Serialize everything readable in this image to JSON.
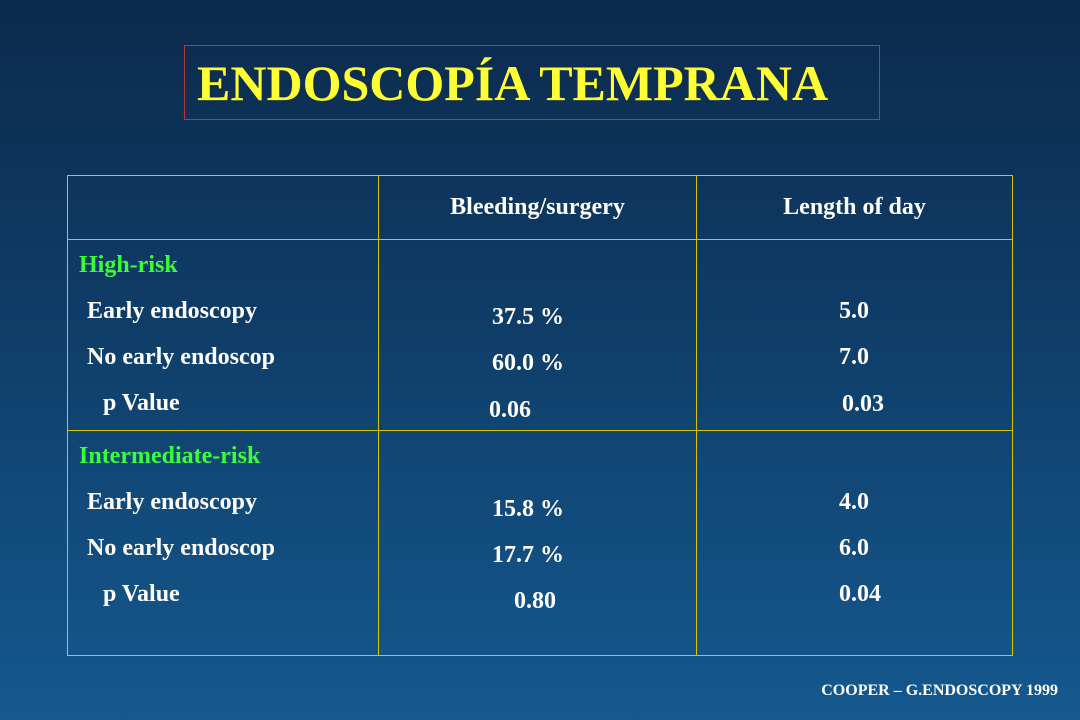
{
  "slide": {
    "title": "ENDOSCOPÍA TEMPRANA",
    "footer": "COOPER – G.ENDOSCOPY  1999"
  },
  "table": {
    "headers": [
      "",
      "Bleeding/surgery",
      "Length of day"
    ],
    "groups": [
      {
        "label": "High-risk",
        "rows": [
          "Early endoscopy",
          "No early endoscop",
          "p  Value"
        ],
        "bleeding": [
          "37.5 %",
          "60.0 %",
          "0.06"
        ],
        "length": [
          "5.0",
          "7.0",
          "0.03"
        ]
      },
      {
        "label": "Intermediate-risk",
        "rows": [
          "Early endoscopy",
          "No early endoscop",
          "p  Value"
        ],
        "bleeding": [
          "15.8 %",
          "17.7 %",
          "0.80"
        ],
        "length": [
          "4.0",
          "6.0",
          "0.04"
        ]
      }
    ]
  },
  "colors": {
    "title": "#ffff33",
    "group_label": "#39ff39",
    "table_border": "#d9c300",
    "title_border": "#b33a2e"
  }
}
